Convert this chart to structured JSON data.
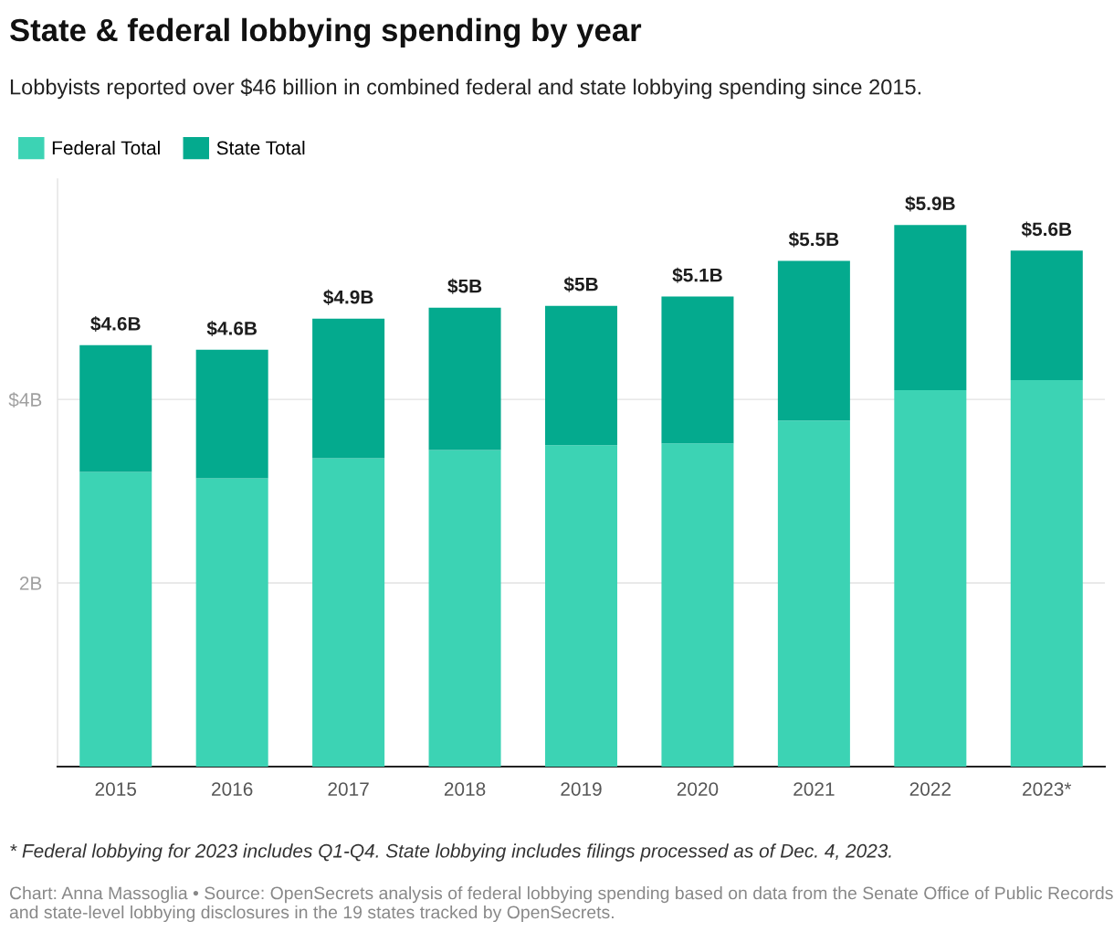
{
  "chart_data": {
    "type": "bar",
    "stacked": true,
    "title": "State & federal lobbying spending by year",
    "subtitle": "Lobbyists reported over $46 billion in combined federal and state lobbying spending since 2015.",
    "categories": [
      "2015",
      "2016",
      "2017",
      "2018",
      "2019",
      "2020",
      "2021",
      "2022",
      "2023*"
    ],
    "series": [
      {
        "name": "Federal Total",
        "color": "#3cd3b4",
        "values": [
          3.21,
          3.14,
          3.36,
          3.45,
          3.5,
          3.52,
          3.77,
          4.1,
          4.21
        ]
      },
      {
        "name": "State Total",
        "color": "#04aa8e",
        "values": [
          1.38,
          1.4,
          1.52,
          1.55,
          1.52,
          1.6,
          1.74,
          1.8,
          1.41
        ]
      }
    ],
    "totals": [
      "$4.6B",
      "$4.6B",
      "$4.9B",
      "$5B",
      "$5B",
      "$5.1B",
      "$5.5B",
      "$5.9B",
      "$5.6B"
    ],
    "ylim": [
      0,
      6.4
    ],
    "yticks": [
      {
        "value": 0,
        "label": null
      },
      {
        "value": 2,
        "label": "2B"
      },
      {
        "value": 4,
        "label": "$4B"
      }
    ],
    "grid": "y",
    "legend": "top left",
    "annotations": [
      "* Federal lobbying for 2023 includes Q1-Q4. State lobbying includes filings processed as of Dec. 4, 2023.",
      "Chart: Anna Massoglia • Source: OpenSecrets analysis of federal lobbying spending based on data from the Senate Office of Public Records and state-level lobbying disclosures in the 19 states tracked by OpenSecrets."
    ]
  }
}
